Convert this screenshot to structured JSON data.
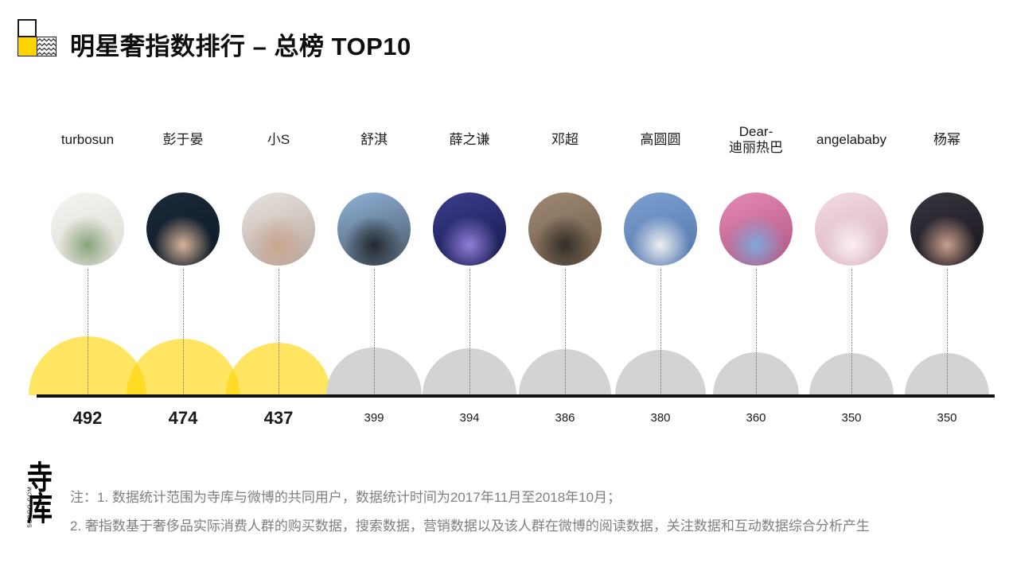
{
  "header": {
    "title": "明星奢指数排行 – 总榜 TOP10",
    "brand_yellow": "#FFD400"
  },
  "chart_data": {
    "type": "bar",
    "title": "明星奢指数排行 – 总榜 TOP10",
    "categories": [
      "turbosun",
      "彭于晏",
      "小S",
      "舒淇",
      "薛之谦",
      "邓超",
      "高圆圆",
      "Dear-\n迪丽热巴",
      "angelababy",
      "杨幂"
    ],
    "values": [
      492,
      474,
      437,
      399,
      394,
      386,
      380,
      360,
      350,
      350
    ],
    "highlight_count": 3,
    "highlight_color": "rgba(255,213,0,0.62)",
    "highlight_overlap_color": "#FFD92E",
    "bar_color": "#D3D3D3",
    "baseline_color": "#111111",
    "legend_position": "none",
    "grid": false,
    "avatars": [
      {
        "label": "avatar-turbosun",
        "colors": [
          "#f5f4f1",
          "#dddbd4",
          "#8aa37b"
        ]
      },
      {
        "label": "avatar-pengyuyan",
        "colors": [
          "#1b2a38",
          "#0d1a26",
          "#d9b49a"
        ]
      },
      {
        "label": "avatar-xiaos",
        "colors": [
          "#e9e4df",
          "#b7a79d",
          "#caa58f"
        ]
      },
      {
        "label": "avatar-shuqi",
        "colors": [
          "#8fb3d9",
          "#4a5866",
          "#23282f"
        ]
      },
      {
        "label": "avatar-xuezhiqian",
        "colors": [
          "#3b3f8c",
          "#16164d",
          "#8f7fd9"
        ]
      },
      {
        "label": "avatar-dengchao",
        "colors": [
          "#a08a74",
          "#6d5a47",
          "#332e29"
        ]
      },
      {
        "label": "avatar-gaoyuanyuan",
        "colors": [
          "#7d9fd1",
          "#5377ad",
          "#f0f0f0"
        ]
      },
      {
        "label": "avatar-dilireba",
        "colors": [
          "#e58bb4",
          "#b05584",
          "#7ea8d9"
        ]
      },
      {
        "label": "avatar-angelababy",
        "colors": [
          "#f2dce2",
          "#d9aebc",
          "#f9f0f2"
        ]
      },
      {
        "label": "avatar-yangmi",
        "colors": [
          "#3a3640",
          "#17141c",
          "#caa08c"
        ]
      }
    ]
  },
  "footer": {
    "logo_text": "寺库",
    "logo_subtext": "SECOO.COM",
    "notes": [
      "注：1. 数据统计范围为寺库与微博的共同用户，数据统计时间为2017年11月至2018年10月；",
      "2. 奢指数基于奢侈品实际消费人群的购买数据，搜索数据，营销数据以及该人群在微博的阅读数据，关注数据和互动数据综合分析产生"
    ]
  }
}
